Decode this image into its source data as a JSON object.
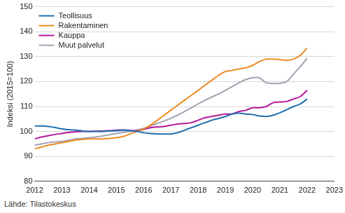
{
  "chart_data": {
    "type": "line",
    "y_label": "Indeksi (2015=100)",
    "source": "Lähde: Tilastokeskus",
    "x": [
      2012,
      2012.25,
      2012.5,
      2012.75,
      2013,
      2013.25,
      2013.5,
      2013.75,
      2014,
      2014.25,
      2014.5,
      2014.75,
      2015,
      2015.25,
      2015.5,
      2015.75,
      2016,
      2016.25,
      2016.5,
      2016.75,
      2017,
      2017.25,
      2017.5,
      2017.75,
      2018,
      2018.25,
      2018.5,
      2018.75,
      2019,
      2019.25,
      2019.5,
      2019.75,
      2020,
      2020.25,
      2020.5,
      2020.75,
      2021,
      2021.25,
      2021.5,
      2021.75,
      2022
    ],
    "series": [
      {
        "name": "Teollisuus",
        "color": "#1f6fae",
        "values": [
          102.2,
          102.2,
          102,
          101.6,
          101,
          100.7,
          100.5,
          100.2,
          100,
          100,
          100,
          100.2,
          100.3,
          100.5,
          100.3,
          100,
          99.5,
          99.2,
          99,
          99,
          99,
          99.5,
          100.5,
          101.5,
          102.5,
          103.5,
          104.5,
          105.2,
          106,
          107,
          107.3,
          107,
          106.8,
          106.2,
          106,
          106.5,
          107.5,
          108.7,
          110,
          111,
          113
        ]
      },
      {
        "name": "Rakentaminen",
        "color": "#ee8a22",
        "values": [
          93,
          93.8,
          94.5,
          95,
          95.5,
          96,
          96.5,
          96.8,
          97,
          97,
          97,
          97.2,
          97.5,
          98,
          99,
          100,
          101,
          102.5,
          104.5,
          106.5,
          108.5,
          110.5,
          112.5,
          114.5,
          116.5,
          118.5,
          120.5,
          122.5,
          124,
          124.5,
          125,
          125.5,
          126.5,
          128,
          129,
          129,
          128.8,
          128.5,
          129,
          130.5,
          133.5
        ]
      },
      {
        "name": "Kauppa",
        "color": "#b5179b",
        "values": [
          97,
          97.8,
          98.3,
          98.8,
          99.2,
          99.6,
          99.8,
          100,
          100,
          100.1,
          100.2,
          100.3,
          100.5,
          100.6,
          100.4,
          100.3,
          100.8,
          101.5,
          101.8,
          102,
          102.5,
          103,
          103.2,
          103.5,
          104.5,
          105.5,
          106,
          106.5,
          107,
          107,
          108,
          108.5,
          109.5,
          109.5,
          110,
          111.5,
          111.8,
          112,
          113,
          114,
          116.5
        ]
      },
      {
        "name": "Muut palvelut",
        "color": "#a3a3b3",
        "values": [
          94.5,
          95,
          95.5,
          95.8,
          96,
          96.5,
          97,
          97.2,
          97.5,
          97.8,
          98.2,
          98.7,
          99.2,
          99.6,
          100,
          100.5,
          101.2,
          102.2,
          103.2,
          104.2,
          105.3,
          106.5,
          108,
          109.5,
          111,
          112.5,
          113.8,
          115,
          116.5,
          118,
          119.5,
          120.8,
          121.5,
          121.5,
          119.5,
          119.2,
          119.3,
          120,
          123,
          126,
          129.3
        ]
      }
    ],
    "xlim": [
      2012,
      2023
    ],
    "xticks": [
      2012,
      2013,
      2014,
      2015,
      2016,
      2017,
      2018,
      2019,
      2020,
      2021,
      2022,
      2023
    ],
    "ylim": [
      80,
      150
    ],
    "yticks": [
      80,
      90,
      100,
      110,
      120,
      130,
      140,
      150
    ],
    "grid": true,
    "legend": "top-left"
  }
}
